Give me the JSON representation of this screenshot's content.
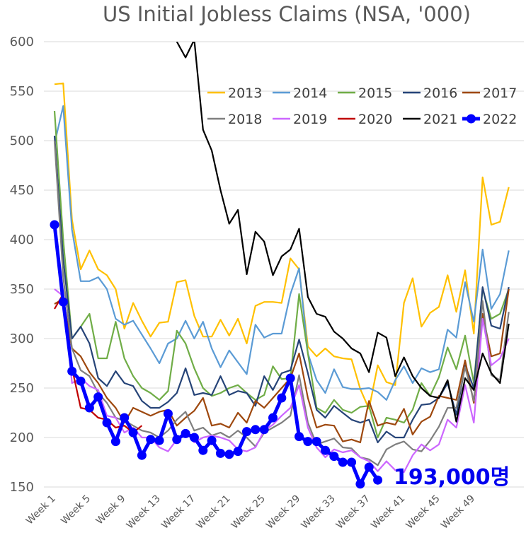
{
  "chart_data": {
    "type": "line",
    "title": "US Initial Jobless Claims (NSA, '000)",
    "xlabel": "",
    "ylabel": "",
    "ylim": [
      150,
      600
    ],
    "yticks": [
      150,
      200,
      250,
      300,
      350,
      400,
      450,
      500,
      550,
      600
    ],
    "xtick_labels": [
      "Week 1",
      "Week 5",
      "Week 9",
      "Week 13",
      "Week 17",
      "Week 21",
      "Week 25",
      "Week 29",
      "Week 33",
      "Week 37",
      "Week 41",
      "Week 45",
      "Week 49"
    ],
    "grid": "horizontal",
    "legend_position": "top-right",
    "annotation": "193,000명",
    "series": [
      {
        "name": "2013",
        "color": "#FFC000",
        "values": [
          557,
          558,
          420,
          370,
          389,
          370,
          364,
          350,
          310,
          336,
          318,
          302,
          316,
          317,
          357,
          359,
          323,
          302,
          302,
          319,
          303,
          320,
          295,
          333,
          337,
          337,
          336,
          381,
          370,
          292,
          282,
          290,
          282,
          280,
          279,
          249,
          229,
          273,
          256,
          253,
          336,
          361,
          312,
          326,
          332,
          364,
          327,
          369,
          305,
          463,
          415,
          418,
          453
        ]
      },
      {
        "name": "2014",
        "color": "#5B9BD5",
        "values": [
          497,
          535,
          410,
          358,
          358,
          362,
          350,
          320,
          314,
          318,
          304,
          290,
          275,
          295,
          300,
          318,
          300,
          317,
          290,
          271,
          288,
          276,
          264,
          314,
          301,
          305,
          305,
          345,
          371,
          285,
          258,
          245,
          269,
          251,
          249,
          249,
          250,
          246,
          238,
          258,
          272,
          255,
          270,
          266,
          269,
          309,
          301,
          357,
          317,
          390,
          330,
          345,
          389
        ]
      },
      {
        "name": "2015",
        "color": "#70AD47",
        "values": [
          530,
          400,
          300,
          312,
          325,
          280,
          280,
          317,
          280,
          262,
          250,
          245,
          238,
          247,
          308,
          295,
          270,
          250,
          242,
          245,
          250,
          253,
          245,
          238,
          243,
          272,
          259,
          260,
          345,
          285,
          230,
          225,
          238,
          228,
          225,
          231,
          232,
          200,
          220,
          218,
          215,
          228,
          255,
          242,
          261,
          291,
          269,
          303,
          255,
          350,
          320,
          325,
          350
        ]
      },
      {
        "name": "2016",
        "color": "#264478",
        "values": [
          505,
          380,
          300,
          312,
          295,
          260,
          252,
          267,
          255,
          252,
          237,
          230,
          230,
          236,
          245,
          270,
          243,
          245,
          243,
          262,
          243,
          247,
          245,
          232,
          262,
          248,
          265,
          268,
          299,
          265,
          228,
          220,
          232,
          225,
          218,
          215,
          218,
          195,
          206,
          200,
          200,
          218,
          233,
          234,
          240,
          255,
          223,
          273,
          250,
          352,
          313,
          310,
          352
        ]
      },
      {
        "name": "2017",
        "color": "#9E480E",
        "values": [
          335,
          340,
          290,
          282,
          266,
          255,
          240,
          230,
          215,
          230,
          226,
          222,
          226,
          228,
          212,
          220,
          227,
          240,
          212,
          214,
          210,
          225,
          215,
          237,
          230,
          240,
          250,
          260,
          285,
          240,
          210,
          213,
          212,
          196,
          198,
          195,
          237,
          212,
          215,
          213,
          229,
          203,
          216,
          221,
          242,
          240,
          238,
          278,
          235,
          325,
          282,
          285,
          350
        ]
      },
      {
        "name": "2018",
        "color": "#7F7F7F",
        "values": [
          500,
          362,
          290,
          268,
          262,
          245,
          235,
          220,
          217,
          212,
          207,
          205,
          200,
          207,
          218,
          226,
          207,
          210,
          202,
          205,
          200,
          207,
          200,
          191,
          205,
          210,
          215,
          222,
          263,
          215,
          193,
          196,
          199,
          190,
          189,
          180,
          178,
          172,
          188,
          193,
          196,
          188,
          186,
          197,
          211,
          230,
          230,
          271,
          237,
          338,
          263,
          258,
          327
        ]
      },
      {
        "name": "2019",
        "color": "#CC66FF",
        "values": [
          350,
          343,
          255,
          260,
          252,
          248,
          222,
          220,
          205,
          210,
          200,
          200,
          190,
          186,
          198,
          206,
          195,
          200,
          202,
          200,
          197,
          188,
          186,
          190,
          207,
          213,
          222,
          230,
          253,
          210,
          190,
          180,
          188,
          185,
          187,
          180,
          176,
          166,
          176,
          167,
          165,
          182,
          193,
          187,
          193,
          218,
          210,
          253,
          215,
          320,
          273,
          280,
          300
        ]
      },
      {
        "name": "2020",
        "color": "#C00000",
        "values": [
          330,
          345,
          270,
          230,
          228,
          220,
          218,
          210,
          212,
          205,
          212
        ]
      },
      {
        "name": "2021",
        "color": "#000000",
        "values": [
          null,
          null,
          null,
          null,
          null,
          null,
          null,
          null,
          null,
          null,
          null,
          null,
          null,
          null,
          600,
          584,
          602,
          511,
          490,
          450,
          416,
          430,
          365,
          408,
          398,
          364,
          383,
          390,
          411,
          342,
          325,
          322,
          307,
          300,
          290,
          285,
          266,
          306,
          301,
          262,
          281,
          262,
          250,
          242,
          240,
          258,
          216,
          260,
          248,
          285,
          265,
          255,
          315
        ]
      },
      {
        "name": "2022",
        "color": "#0000FF",
        "values": [
          415,
          337,
          267,
          257,
          230,
          241,
          215,
          196,
          220,
          205,
          182,
          198,
          197,
          224,
          198,
          204,
          200,
          187,
          197,
          184,
          183,
          186,
          206,
          208,
          208,
          220,
          240,
          260,
          201,
          196,
          196,
          187,
          181,
          175,
          175,
          153,
          170,
          157
        ]
      }
    ]
  }
}
